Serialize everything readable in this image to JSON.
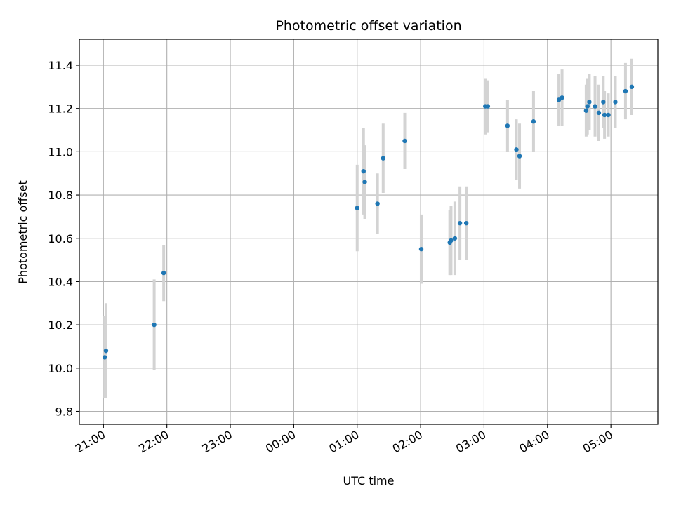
{
  "chart_data": {
    "type": "scatter",
    "title": "Photometric offset variation",
    "xlabel": "UTC time",
    "ylabel": "Photometric offset",
    "x_unit": "hours",
    "x_ticks": [
      {
        "value": 21,
        "label": "21:00"
      },
      {
        "value": 22,
        "label": "22:00"
      },
      {
        "value": 23,
        "label": "23:00"
      },
      {
        "value": 24,
        "label": "00:00"
      },
      {
        "value": 25,
        "label": "01:00"
      },
      {
        "value": 26,
        "label": "02:00"
      },
      {
        "value": 27,
        "label": "03:00"
      },
      {
        "value": 28,
        "label": "04:00"
      },
      {
        "value": 29,
        "label": "05:00"
      }
    ],
    "y_ticks": [
      {
        "value": 9.8,
        "label": "9.8"
      },
      {
        "value": 10.0,
        "label": "10.0"
      },
      {
        "value": 10.2,
        "label": "10.2"
      },
      {
        "value": 10.4,
        "label": "10.4"
      },
      {
        "value": 10.6,
        "label": "10.6"
      },
      {
        "value": 10.8,
        "label": "10.8"
      },
      {
        "value": 11.0,
        "label": "11.0"
      },
      {
        "value": 11.2,
        "label": "11.2"
      },
      {
        "value": 11.4,
        "label": "11.4"
      }
    ],
    "xlim": [
      20.62,
      29.74
    ],
    "ylim": [
      9.74,
      11.52
    ],
    "grid": true,
    "legend": "none",
    "colors": {
      "point": "#1f77b4",
      "errorbar": "#d3d3d3",
      "grid": "#b0b0b0"
    },
    "points": [
      {
        "x": 21.02,
        "y": 10.05,
        "err": 0.19
      },
      {
        "x": 21.04,
        "y": 10.08,
        "err": 0.22
      },
      {
        "x": 21.8,
        "y": 10.2,
        "err": 0.21
      },
      {
        "x": 21.95,
        "y": 10.44,
        "err": 0.13
      },
      {
        "x": 25.0,
        "y": 10.74,
        "err": 0.2
      },
      {
        "x": 25.1,
        "y": 10.91,
        "err": 0.2
      },
      {
        "x": 25.12,
        "y": 10.86,
        "err": 0.17
      },
      {
        "x": 25.32,
        "y": 10.76,
        "err": 0.14
      },
      {
        "x": 25.41,
        "y": 10.97,
        "err": 0.16
      },
      {
        "x": 25.75,
        "y": 11.05,
        "err": 0.13
      },
      {
        "x": 26.01,
        "y": 10.55,
        "err": 0.16
      },
      {
        "x": 26.46,
        "y": 10.58,
        "err": 0.15
      },
      {
        "x": 26.48,
        "y": 10.59,
        "err": 0.16
      },
      {
        "x": 26.54,
        "y": 10.6,
        "err": 0.17
      },
      {
        "x": 26.62,
        "y": 10.67,
        "err": 0.17
      },
      {
        "x": 26.72,
        "y": 10.67,
        "err": 0.17
      },
      {
        "x": 27.02,
        "y": 11.21,
        "err": 0.13
      },
      {
        "x": 27.06,
        "y": 11.21,
        "err": 0.12
      },
      {
        "x": 27.37,
        "y": 11.12,
        "err": 0.12
      },
      {
        "x": 27.51,
        "y": 11.01,
        "err": 0.14
      },
      {
        "x": 27.56,
        "y": 10.98,
        "err": 0.15
      },
      {
        "x": 27.78,
        "y": 11.14,
        "err": 0.14
      },
      {
        "x": 28.18,
        "y": 11.24,
        "err": 0.12
      },
      {
        "x": 28.23,
        "y": 11.25,
        "err": 0.13
      },
      {
        "x": 28.61,
        "y": 11.19,
        "err": 0.12
      },
      {
        "x": 28.63,
        "y": 11.21,
        "err": 0.13
      },
      {
        "x": 28.66,
        "y": 11.23,
        "err": 0.13
      },
      {
        "x": 28.75,
        "y": 11.21,
        "err": 0.14
      },
      {
        "x": 28.81,
        "y": 11.18,
        "err": 0.13
      },
      {
        "x": 28.88,
        "y": 11.23,
        "err": 0.12
      },
      {
        "x": 28.9,
        "y": 11.17,
        "err": 0.11
      },
      {
        "x": 28.96,
        "y": 11.17,
        "err": 0.1
      },
      {
        "x": 29.07,
        "y": 11.23,
        "err": 0.12
      },
      {
        "x": 29.23,
        "y": 11.28,
        "err": 0.13
      },
      {
        "x": 29.33,
        "y": 11.3,
        "err": 0.13
      }
    ]
  }
}
